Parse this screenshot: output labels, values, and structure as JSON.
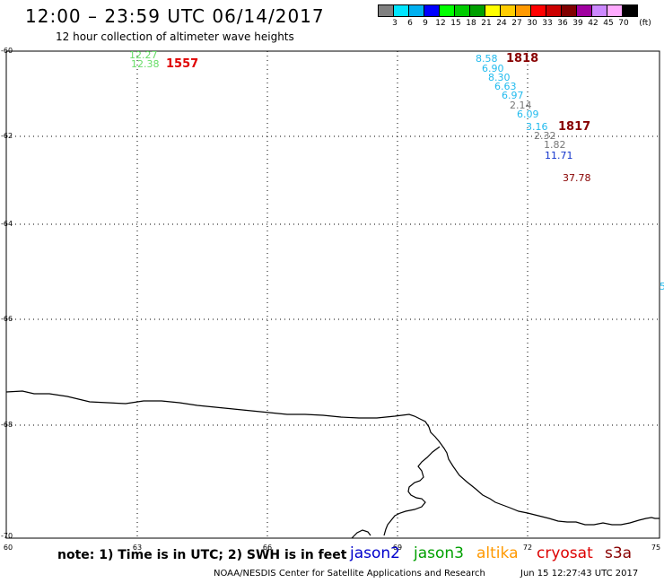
{
  "header": {
    "title": "12:00 – 23:59 UTC 06/14/2017",
    "subtitle": "12 hour collection of altimeter wave heights"
  },
  "colorbar": {
    "unit": "(ft)",
    "colors": [
      "#808080",
      "#00e5ff",
      "#00b0f0",
      "#0000ff",
      "#00ff00",
      "#00cc00",
      "#00a000",
      "#ffff00",
      "#ffcc00",
      "#ff9900",
      "#ff0000",
      "#cc0000",
      "#800000",
      "#a000a0",
      "#cc88ff",
      "#ffaaff",
      "#000000"
    ],
    "labels": [
      "3",
      "6",
      "9",
      "12",
      "15",
      "18",
      "21",
      "24",
      "27",
      "30",
      "33",
      "36",
      "39",
      "42",
      "45",
      "70"
    ]
  },
  "axes": {
    "lat_labels": [
      "-60",
      "-62",
      "-64",
      "-66",
      "-68",
      "-70"
    ],
    "lon_labels": [
      "60",
      "63",
      "66",
      "69",
      "72",
      "75"
    ]
  },
  "wave_labels": [
    {
      "text": "12.27",
      "color": "#66dd66"
    },
    {
      "text": "12.38",
      "color": "#66dd66"
    },
    {
      "text": "8.58",
      "color": "#22bbee"
    },
    {
      "text": "6.90",
      "color": "#22bbee"
    },
    {
      "text": "8.30",
      "color": "#22bbee"
    },
    {
      "text": "6.63",
      "color": "#22bbee"
    },
    {
      "text": "6.97",
      "color": "#22bbee"
    },
    {
      "text": "2.14",
      "color": "#777777"
    },
    {
      "text": "6.09",
      "color": "#22bbee"
    },
    {
      "text": "3.16",
      "color": "#22bbee"
    },
    {
      "text": "2.32",
      "color": "#777777"
    },
    {
      "text": "1.82",
      "color": "#777777"
    },
    {
      "text": "11.71",
      "color": "#1133cc"
    },
    {
      "text": "37.78",
      "color": "#880000"
    },
    {
      "text": "5",
      "color": "#22bbee"
    }
  ],
  "pass_labels": [
    {
      "text": "1557",
      "color": "#e00000"
    },
    {
      "text": "1818",
      "color": "#880000"
    },
    {
      "text": "1817",
      "color": "#880000"
    }
  ],
  "footer": {
    "note": "note: 1) Time is in UTC; 2) SWH is in feet",
    "legend": [
      {
        "name": "jason2",
        "color": "#0000cc"
      },
      {
        "name": "jason3",
        "color": "#00a000"
      },
      {
        "name": "altika",
        "color": "#ff9900"
      },
      {
        "name": "cryosat",
        "color": "#dd0000"
      },
      {
        "name": "s3a",
        "color": "#880000"
      }
    ],
    "credit": "NOAA/NESDIS Center for Satellite Applications and Research",
    "timestamp": "Jun 15 12:27:43 UTC 2017"
  }
}
